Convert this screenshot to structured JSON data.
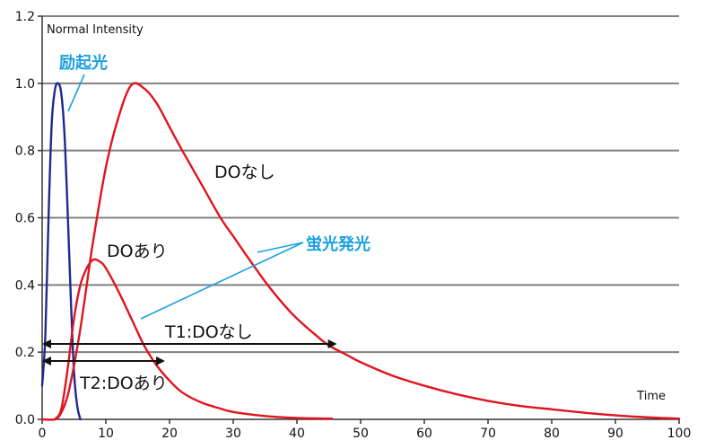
{
  "chart_data": {
    "type": "line",
    "ylabel": "Normal Intensity",
    "xlabel": "Time",
    "xlim": [
      0,
      100
    ],
    "ylim": [
      0,
      1.2
    ],
    "x_ticks": [
      "0",
      "10",
      "20",
      "30",
      "40",
      "50",
      "60",
      "70",
      "80",
      "90",
      "100"
    ],
    "y_ticks": [
      "0.0",
      "0.2",
      "0.4",
      "0.6",
      "0.8",
      "1.0",
      "1.2"
    ],
    "grid": "horizontal",
    "colors": {
      "excitation": "#1e2a8c",
      "fluorescence": "#e0141e",
      "callout": "#1ba0e0",
      "grid": "#808080",
      "arrow": "#111111"
    },
    "series": [
      {
        "name": "励起光",
        "color": "#1e2a8c",
        "x": [
          0,
          0.5,
          1,
          1.5,
          2,
          2.5,
          3,
          3.5,
          4,
          4.5,
          5,
          5.5,
          6
        ],
        "y": [
          0.1,
          0.25,
          0.6,
          0.88,
          0.98,
          1.0,
          0.97,
          0.85,
          0.62,
          0.36,
          0.14,
          0.04,
          0.0
        ]
      },
      {
        "name": "DOなし",
        "color": "#e0141e",
        "x": [
          0,
          2,
          3,
          4,
          5,
          6,
          7,
          8,
          10,
          12,
          14,
          16,
          18,
          20,
          22,
          25,
          28,
          30,
          32,
          35,
          38,
          40,
          43,
          45,
          48,
          50,
          55,
          60,
          65,
          70,
          75,
          80,
          85,
          90,
          95,
          100
        ],
        "y": [
          0.0,
          0.0,
          0.02,
          0.07,
          0.16,
          0.27,
          0.4,
          0.53,
          0.75,
          0.9,
          0.995,
          0.985,
          0.94,
          0.87,
          0.8,
          0.7,
          0.6,
          0.545,
          0.49,
          0.41,
          0.34,
          0.3,
          0.25,
          0.22,
          0.19,
          0.17,
          0.13,
          0.1,
          0.075,
          0.055,
          0.04,
          0.03,
          0.02,
          0.012,
          0.006,
          0.002
        ]
      },
      {
        "name": "DOあり",
        "color": "#e0141e",
        "x": [
          2,
          3,
          4,
          5,
          6,
          7,
          8,
          9,
          10,
          12,
          14,
          16,
          18,
          20,
          22,
          25,
          28,
          30,
          35,
          40,
          45.5
        ],
        "y": [
          0.0,
          0.03,
          0.15,
          0.3,
          0.4,
          0.45,
          0.475,
          0.47,
          0.45,
          0.38,
          0.3,
          0.22,
          0.16,
          0.115,
          0.08,
          0.05,
          0.032,
          0.022,
          0.01,
          0.004,
          0.002
        ]
      }
    ],
    "annotations": {
      "excitation_label": "励起光",
      "fluorescence_label": "蛍光発光",
      "do_none_label": "DOなし",
      "do_present_label": "DOあり",
      "t1_label": "T1:DOなし",
      "t2_label": "T2:DOあり"
    },
    "intervals": [
      {
        "name": "T1:DOなし",
        "from": 0,
        "to": 46
      },
      {
        "name": "T2:DOあり",
        "from": 0,
        "to": 19
      }
    ]
  }
}
